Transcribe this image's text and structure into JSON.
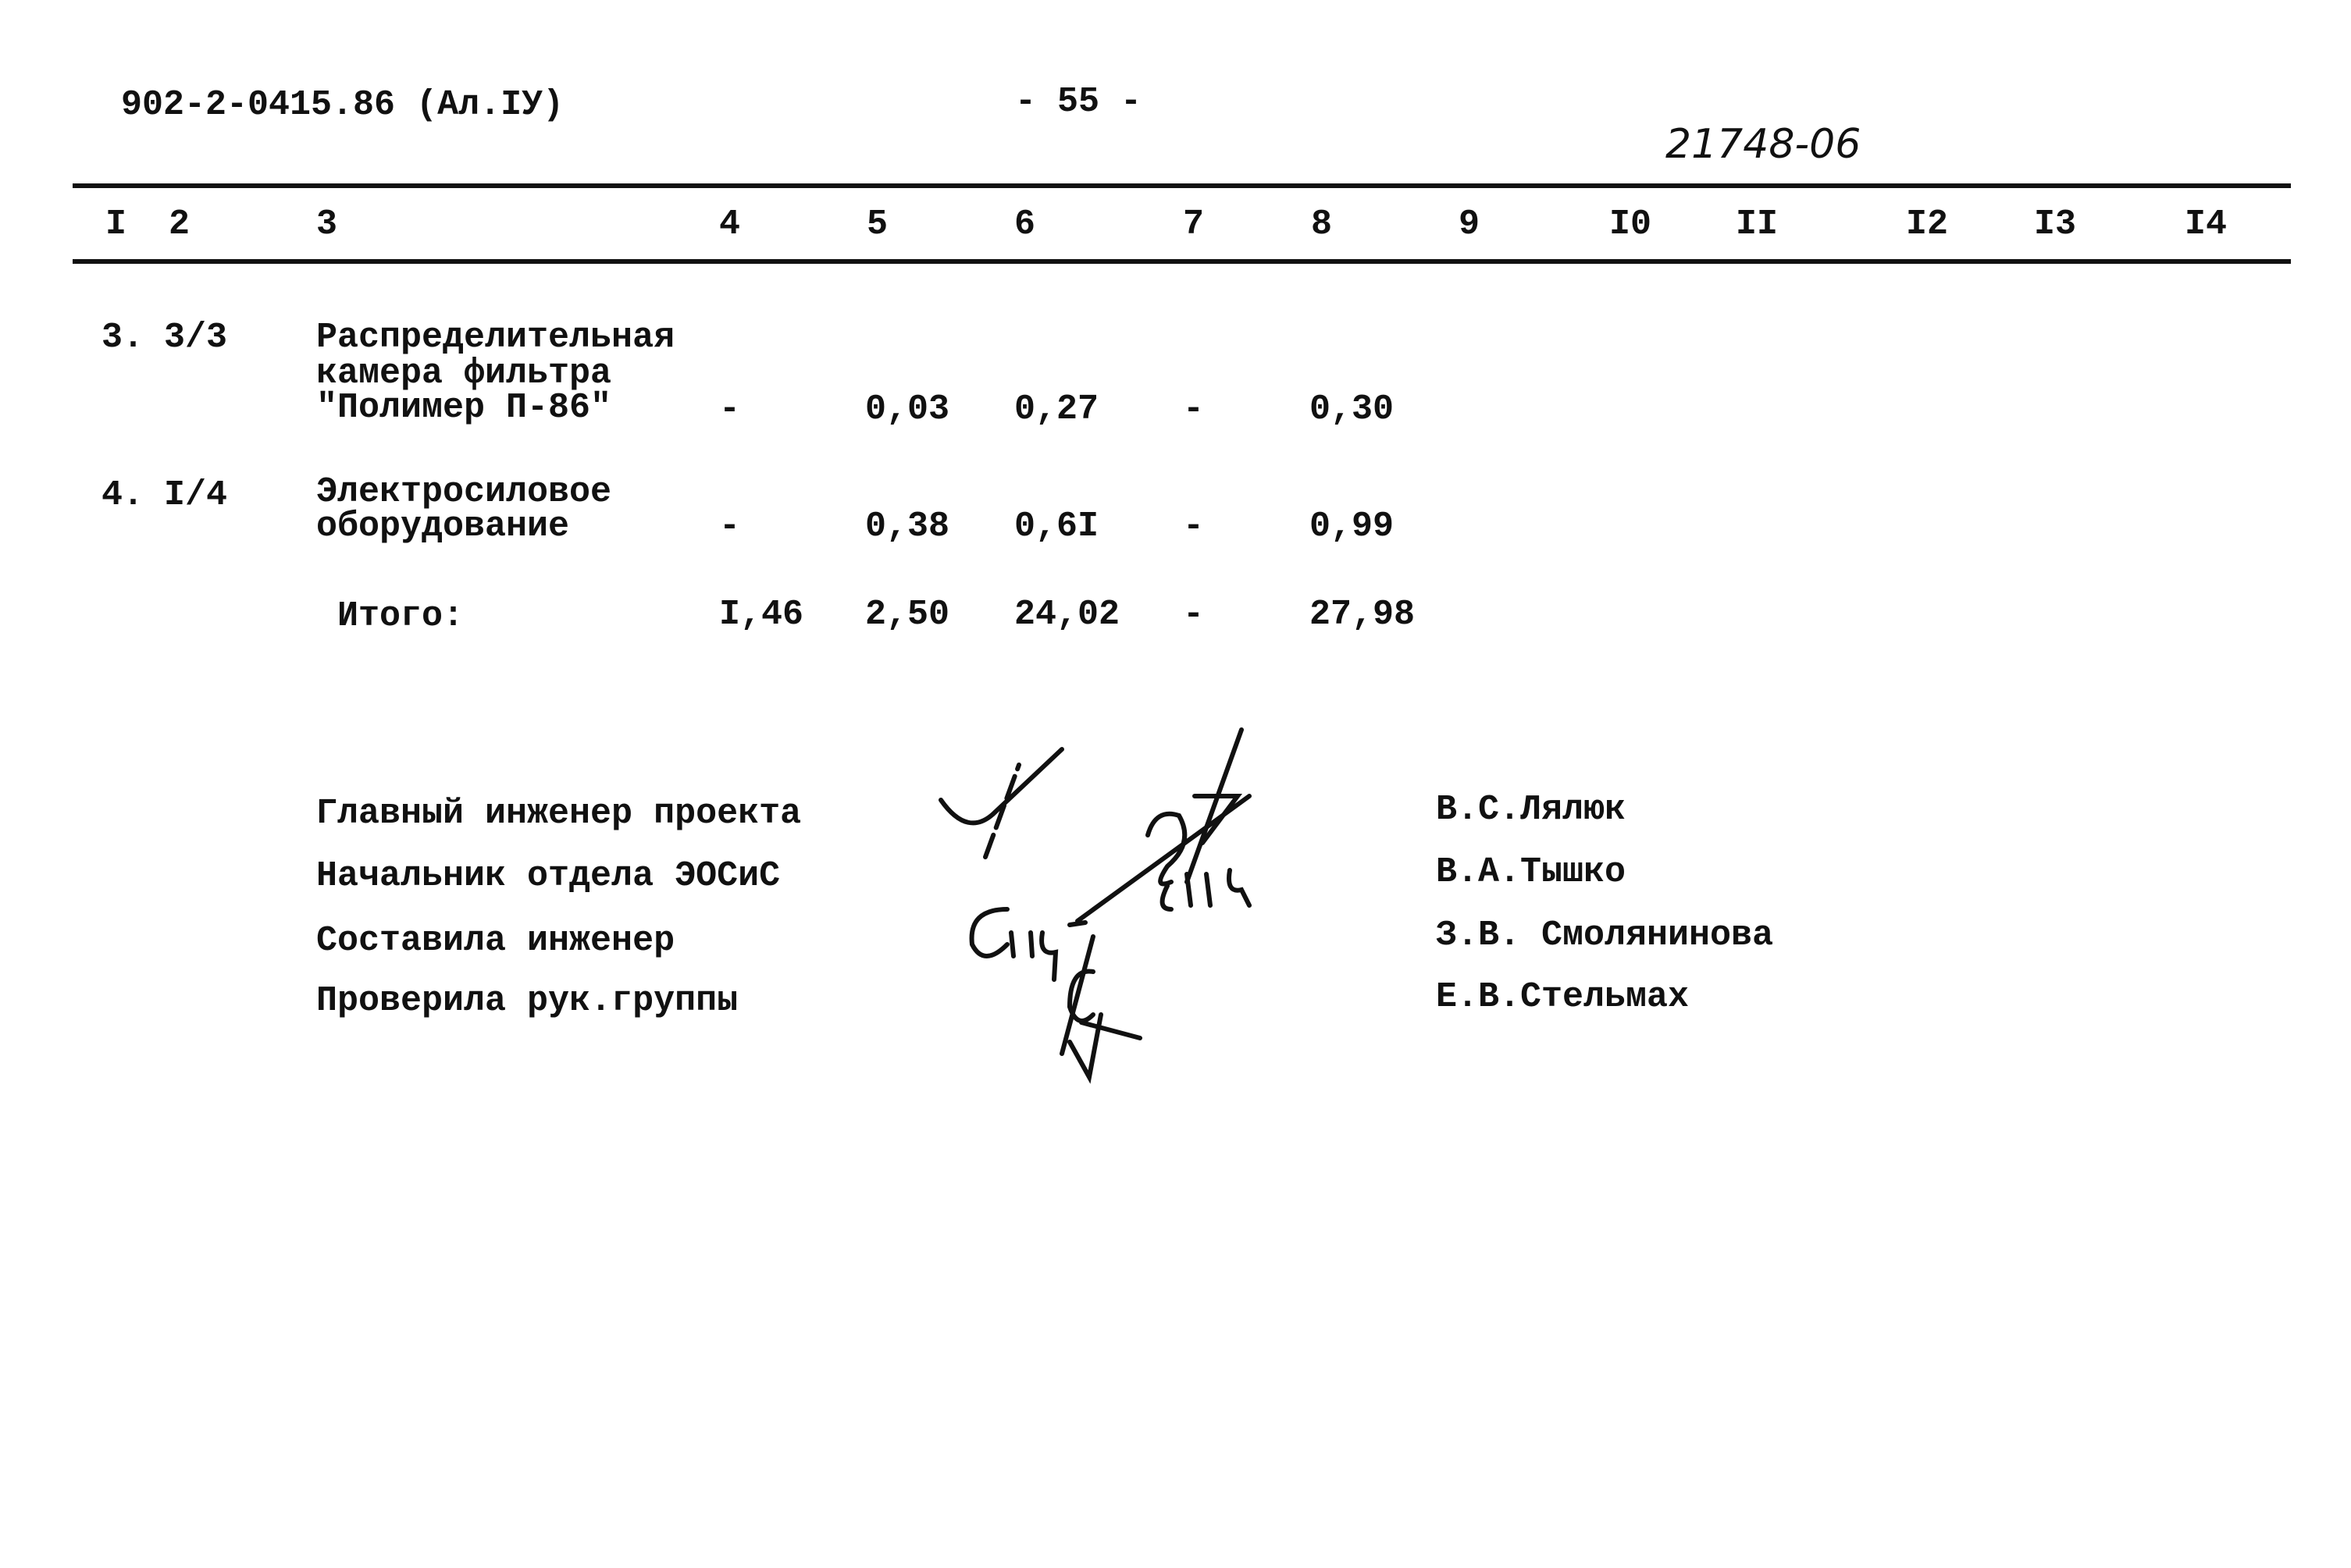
{
  "header": {
    "doc_code": "902-2-0415.86 (Ал.IУ)",
    "page_number": "- 55 -",
    "handwritten_number": "21748-06"
  },
  "table": {
    "columns": [
      "I",
      "2",
      "3",
      "4",
      "5",
      "6",
      "7",
      "8",
      "9",
      "I0",
      "II",
      "I2",
      "I3",
      "I4"
    ],
    "rows": [
      {
        "num": "3.",
        "ref": "3/3",
        "name_lines": [
          "Распределительная",
          "камера фильтра",
          "\"Полимер П-86\""
        ],
        "c4": "-",
        "c5": "0,03",
        "c6": "0,27",
        "c7": "-",
        "c8": "0,30"
      },
      {
        "num": "4.",
        "ref": "I/4",
        "name_lines": [
          "Электросиловое",
          "оборудование"
        ],
        "c4": "-",
        "c5": "0,38",
        "c6": "0,6I",
        "c7": "-",
        "c8": "0,99"
      }
    ],
    "total": {
      "label": "Итого:",
      "c4": "I,46",
      "c5": "2,50",
      "c6": "24,02",
      "c7": "-",
      "c8": "27,98"
    }
  },
  "signatures": [
    {
      "role": "Главный инженер проекта",
      "name": "В.С.Лялюк"
    },
    {
      "role": "Начальник отдела ЭОСиС",
      "name": "В.А.Тышко"
    },
    {
      "role": "Составила инженер",
      "name": "З.В. Смолянинова"
    },
    {
      "role": "Проверила рук.группы",
      "name": "Е.В.Стельмах"
    }
  ]
}
